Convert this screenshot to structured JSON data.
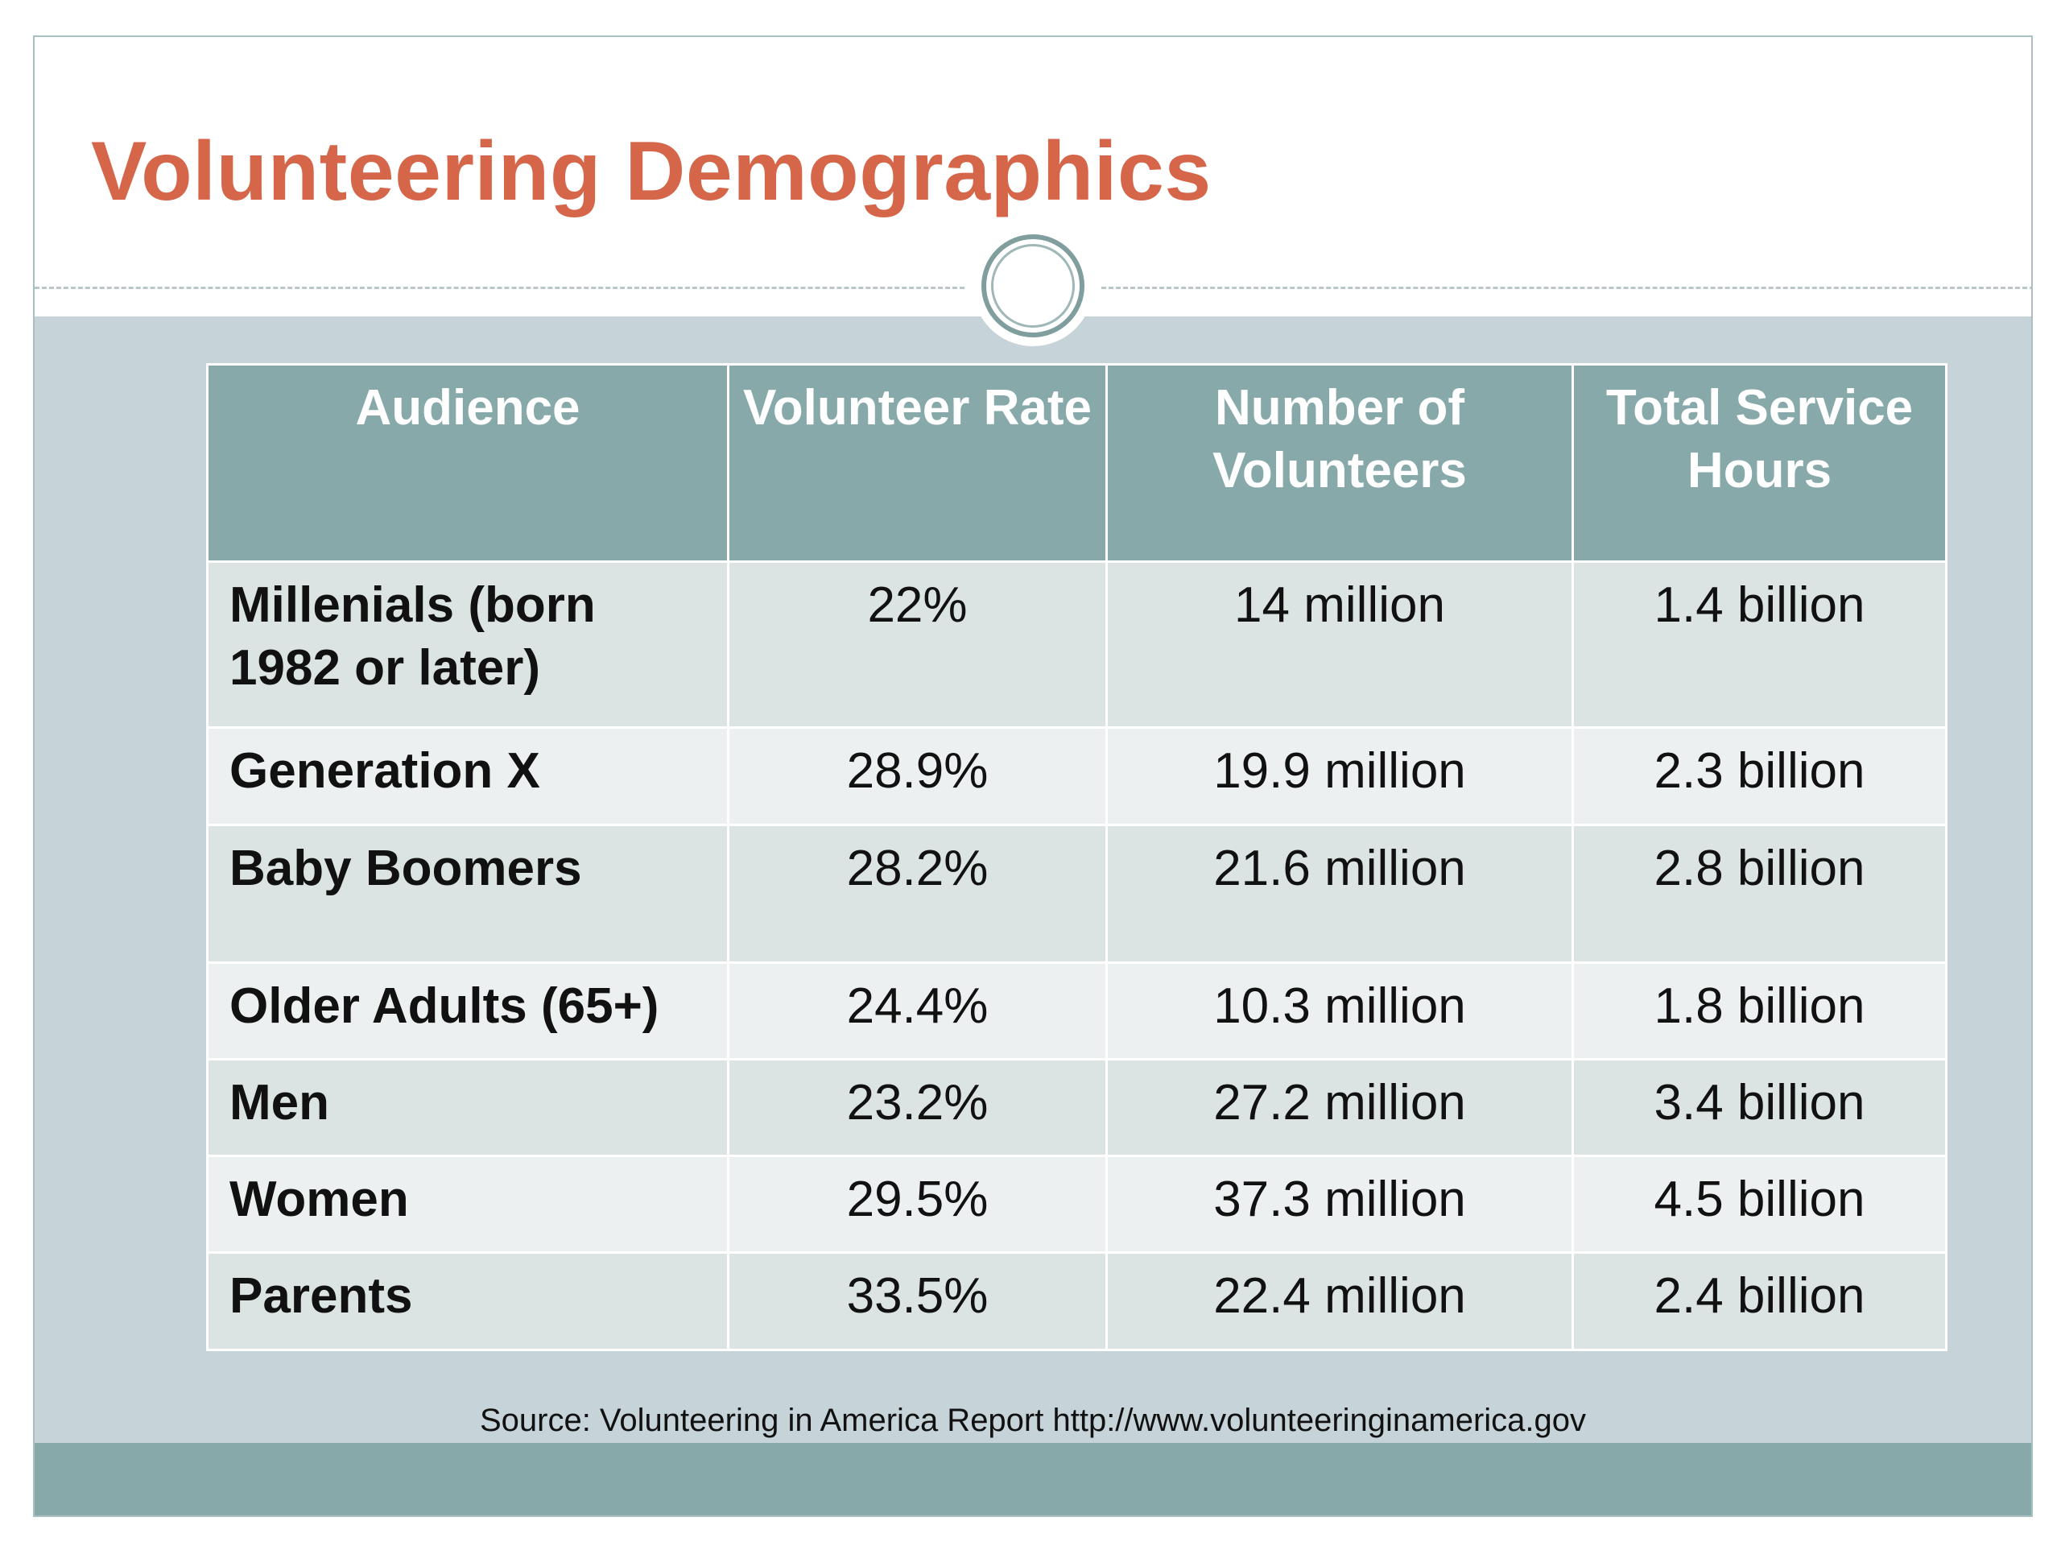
{
  "slide": {
    "title": "Volunteering Demographics",
    "source": "Source: Volunteering in America Report http://www.volunteeringinamerica.gov"
  },
  "table": {
    "headers": [
      "Audience",
      "Volunteer Rate",
      "Number of Volunteers",
      "Total Service Hours"
    ],
    "rows": [
      {
        "audience": "Millenials (born 1982 or later)",
        "rate": "22%",
        "volunteers": "14 million",
        "hours": "1.4 billion"
      },
      {
        "audience": "Generation X",
        "rate": "28.9%",
        "volunteers": "19.9 million",
        "hours": "2.3 billion"
      },
      {
        "audience": "Baby Boomers",
        "rate": "28.2%",
        "volunteers": "21.6 million",
        "hours": "2.8 billion"
      },
      {
        "audience": "Older Adults (65+)",
        "rate": "24.4%",
        "volunteers": "10.3 million",
        "hours": "1.8 billion"
      },
      {
        "audience": "Men",
        "rate": "23.2%",
        "volunteers": "27.2 million",
        "hours": "3.4 billion"
      },
      {
        "audience": "Women",
        "rate": "29.5%",
        "volunteers": "37.3 million",
        "hours": "4.5 billion"
      },
      {
        "audience": "Parents",
        "rate": "33.5%",
        "volunteers": "22.4 million",
        "hours": "2.4 billion"
      }
    ]
  },
  "colors": {
    "title": "#d5664a",
    "header_fill": "#88a9aa",
    "row_odd": "#dbe3e3",
    "row_even": "#edf0f1",
    "background": "#c6d3d8"
  }
}
